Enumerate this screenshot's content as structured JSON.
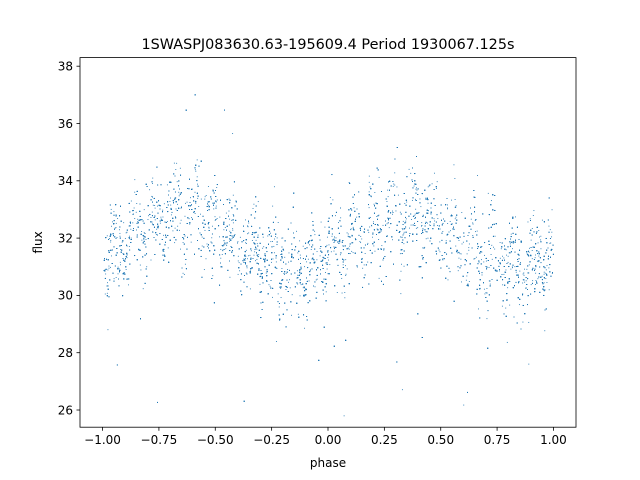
{
  "chart_data": {
    "type": "scatter",
    "title": "1SWASPJ083630.63-195609.4 Period 1930067.125s",
    "xlabel": "phase",
    "ylabel": "flux",
    "xlim": [
      -1.1,
      1.1
    ],
    "ylim": [
      25.4,
      38.3
    ],
    "x_ticks": [
      -1.0,
      -0.75,
      -0.5,
      -0.25,
      0.0,
      0.25,
      0.5,
      0.75,
      1.0
    ],
    "x_tick_labels": [
      "−1.00",
      "−0.75",
      "−0.50",
      "−0.25",
      "0.00",
      "0.25",
      "0.50",
      "0.75",
      "1.00"
    ],
    "y_ticks": [
      26,
      28,
      30,
      32,
      34,
      36,
      38
    ],
    "y_tick_labels": [
      "26",
      "28",
      "30",
      "32",
      "34",
      "36",
      "38"
    ],
    "grid": false,
    "marker_color": "#1f77b4",
    "series": [
      {
        "values_summary": "dense phase-folded light curve, roughly sinusoidal with two cycles over phase -1 to 1",
        "x_range": [
          -1.0,
          1.0
        ],
        "mean_flux": 31.9,
        "amplitude": 0.9,
        "max_at_phase": [
          -0.65,
          0.35
        ],
        "min_at_phase": [
          -0.15,
          0.85
        ]
      }
    ]
  }
}
